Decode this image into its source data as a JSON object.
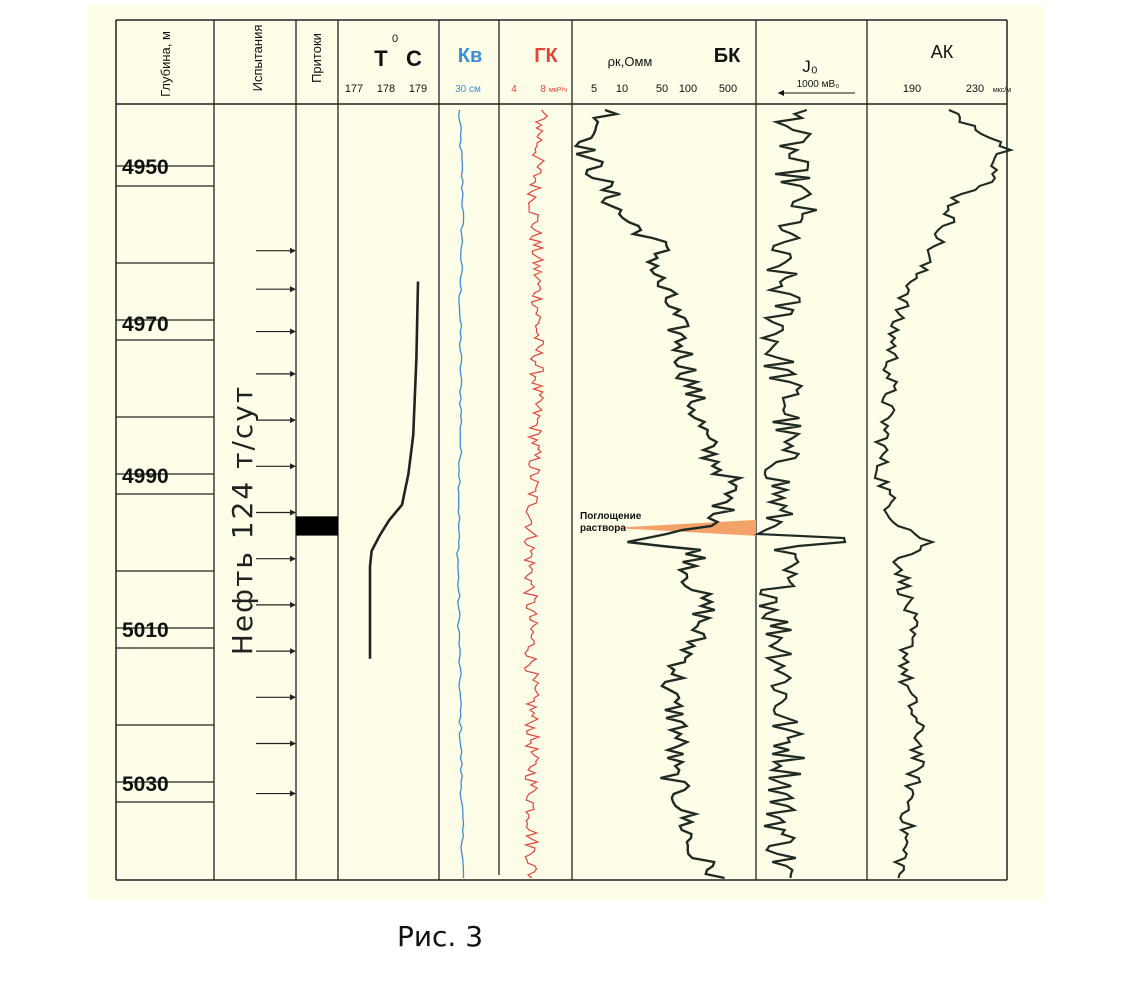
{
  "caption": "Рис. 3",
  "colors": {
    "panel_bg": "#fefde8",
    "line": "#222222",
    "kv": "#3a8fd6",
    "gk": "#e0443a",
    "absorption": "#f3a36a"
  },
  "chart_data": {
    "type": "line",
    "depth_axis": {
      "label": "Глубина, м",
      "range": [
        4940,
        5043
      ],
      "labeled_ticks": [
        "4950",
        "4970",
        "4990",
        "5010",
        "5030"
      ]
    },
    "tracks": {
      "tests": {
        "label": "Испытания",
        "annotation": "Нефть 124 т/сут",
        "arrow_depths": [
          4961,
          4966,
          4971.5,
          4977,
          4983,
          4989,
          4995,
          5001,
          5007,
          5013,
          5019,
          5025,
          5031.5
        ]
      },
      "inflows": {
        "label": "Притоки",
        "interval": [
          4995.5,
          4998
        ]
      },
      "temperature": {
        "title": "Т",
        "superscript": "0",
        "unit": "С",
        "ticks": [
          "177",
          "178",
          "179"
        ],
        "range": [
          177,
          179
        ],
        "curve": [
          [
            179.0,
            4965
          ],
          [
            178.95,
            4975
          ],
          [
            178.85,
            4985
          ],
          [
            178.7,
            4990
          ],
          [
            178.5,
            4994
          ],
          [
            178.1,
            4996
          ],
          [
            177.8,
            4998
          ],
          [
            177.55,
            5000
          ],
          [
            177.5,
            5002
          ],
          [
            177.5,
            5014
          ]
        ]
      },
      "kv": {
        "title": "Кв",
        "scale_label": "30 см"
      },
      "gk": {
        "title": "ГК",
        "ticks": [
          "4",
          "8"
        ],
        "unit": "мкР/ч"
      },
      "bk": {
        "title": "БК",
        "param": "ρк,Омм",
        "ticks": [
          "5",
          "10",
          "50",
          "100",
          "500"
        ],
        "annotation_line1": "Поглощение",
        "annotation_line2": "раствора",
        "absorption_depth": 4997
      },
      "j0": {
        "title": "J₀",
        "scale_label": "1000 мВ₀"
      },
      "ak": {
        "title": "АК",
        "ticks": [
          "190",
          "230"
        ],
        "unit": "мкс/м"
      }
    }
  }
}
